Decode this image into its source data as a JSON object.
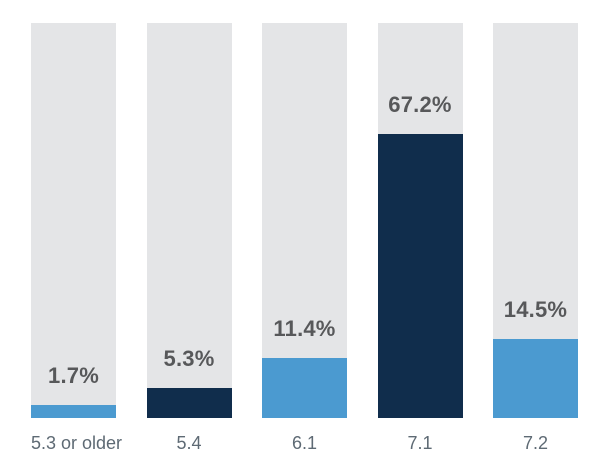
{
  "chart_data": {
    "type": "bar",
    "title": "",
    "xlabel": "",
    "ylabel": "",
    "unit": "%",
    "ylim": [
      0,
      100
    ],
    "grid": false,
    "legend_position": "none",
    "orientation": "vertical",
    "track_represents": "100%",
    "categories": [
      "5.3 or older",
      "5.4",
      "6.1",
      "7.1",
      "7.2"
    ],
    "values": [
      1.7,
      5.3,
      11.4,
      67.2,
      14.5
    ],
    "bars": [
      {
        "category": "5.3 or older",
        "value": 1.7,
        "value_label": "1.7%",
        "color": "light_blue",
        "fill_fraction": 0.033
      },
      {
        "category": "5.4",
        "value": 5.3,
        "value_label": "5.3%",
        "color": "dark_navy",
        "fill_fraction": 0.076
      },
      {
        "category": "6.1",
        "value": 11.4,
        "value_label": "11.4%",
        "color": "light_blue",
        "fill_fraction": 0.152
      },
      {
        "category": "7.1",
        "value": 67.2,
        "value_label": "67.2%",
        "color": "dark_navy",
        "fill_fraction": 0.719
      },
      {
        "category": "7.2",
        "value": 14.5,
        "value_label": "14.5%",
        "color": "light_blue",
        "fill_fraction": 0.2
      }
    ],
    "colors": {
      "light_blue": "#4b9ad0",
      "dark_navy": "#102d4c",
      "track_gray": "#e4e5e7",
      "value_label_text": "#57585a",
      "category_label_text": "#5e6a74",
      "background": "#ffffff"
    }
  }
}
